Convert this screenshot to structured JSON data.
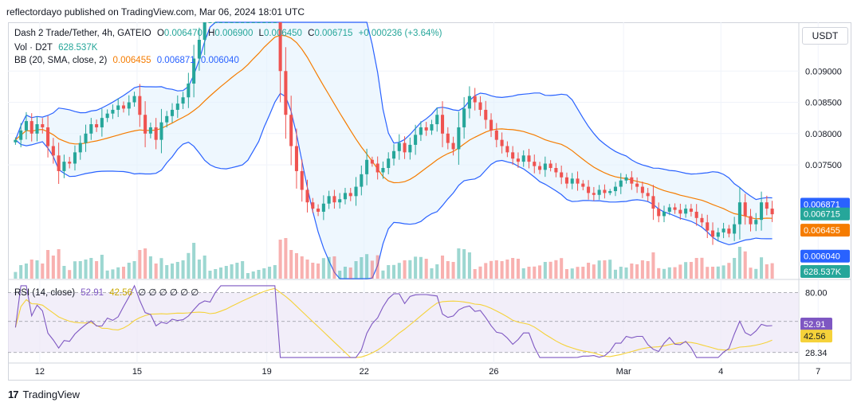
{
  "header": {
    "text": "reflectordayo published on TradingView.com, Mar 06, 2024 18:01 UTC"
  },
  "currency": "USDT",
  "legend": {
    "symbol": "Dash 2 Trade/Tether, 4h, GATEIO",
    "o_label": "O",
    "o_value": "0.006470",
    "h_label": "H",
    "h_value": "0.006900",
    "l_label": "L",
    "l_value": "0.006450",
    "c_label": "C",
    "c_value": "0.006715",
    "change": "+0.000236 (+3.64%)",
    "vol_label": "Vol · D2T",
    "vol_value": "628.537K",
    "bb_label": "BB (20, SMA, close, 2)",
    "bb_basis": "0.006455",
    "bb_upper": "0.006871",
    "bb_lower": "0.006040",
    "rsi_label": "RSI (14, close)",
    "rsi_value": "52.91",
    "rsi_ma": "42.56",
    "rsi_extra": "∅  ∅  ∅  ∅  ∅  ∅"
  },
  "colors": {
    "up": "#26a69a",
    "down": "#ef5350",
    "bb_band": "#2962ff",
    "bb_basis": "#f57c00",
    "bb_fill": "#e3f2fd",
    "rsi_line": "#7e57c2",
    "rsi_ma": "#f5d23a",
    "rsi_fill": "#ede7f6"
  },
  "footer": {
    "brand": "TradingView",
    "logo": "17"
  },
  "chart_data": {
    "type": "candlestick",
    "price_axis": [
      "0.009000",
      "0.008500",
      "0.008000",
      "0.007500"
    ],
    "price_ylim": [
      0.00568,
      0.00978
    ],
    "rsi_axis": [
      "80.00",
      "55.15",
      "28.34"
    ],
    "rsi_ylim": [
      22,
      88
    ],
    "x_ticks": [
      {
        "label": "12",
        "idx": 4.5
      },
      {
        "label": "15",
        "idx": 22.5
      },
      {
        "label": "19",
        "idx": 46.5
      },
      {
        "label": "22",
        "idx": 64.5
      },
      {
        "label": "26",
        "idx": 88.5
      },
      {
        "label": "Mar",
        "idx": 112.5
      },
      {
        "label": "4",
        "idx": 130.5
      },
      {
        "label": "7",
        "idx": 148.5
      }
    ],
    "close": [
      0.0079,
      0.00805,
      0.0082,
      0.008,
      0.00815,
      0.0081,
      0.0078,
      0.00765,
      0.0074,
      0.00755,
      0.00752,
      0.0077,
      0.00785,
      0.008,
      0.00815,
      0.0081,
      0.00825,
      0.00832,
      0.00838,
      0.00845,
      0.0084,
      0.0085,
      0.0086,
      0.0083,
      0.008,
      0.0081,
      0.0079,
      0.00818,
      0.00828,
      0.00838,
      0.00848,
      0.00858,
      0.0088,
      0.0092,
      0.0095,
      0.00985,
      0.00985,
      0.00985,
      0.00985,
      0.00985,
      0.00985,
      0.00985,
      0.00985,
      0.00985,
      0.00985,
      0.00985,
      0.00985,
      0.00985,
      0.00985,
      0.009,
      0.0083,
      0.0078,
      0.0074,
      0.0071,
      0.0069,
      0.0068,
      0.00675,
      0.00688,
      0.007,
      0.0069,
      0.00695,
      0.00705,
      0.007,
      0.00715,
      0.00735,
      0.00758,
      0.00752,
      0.00738,
      0.00745,
      0.0076,
      0.00772,
      0.00785,
      0.0077,
      0.00782,
      0.00798,
      0.0081,
      0.00805,
      0.00815,
      0.0083,
      0.008,
      0.00785,
      0.00775,
      0.0081,
      0.0084,
      0.0086,
      0.0085,
      0.00838,
      0.00822,
      0.00805,
      0.0079,
      0.0078,
      0.0077,
      0.0076,
      0.00755,
      0.00765,
      0.00755,
      0.00748,
      0.00742,
      0.00752,
      0.00745,
      0.00738,
      0.0073,
      0.0072,
      0.00728,
      0.0072,
      0.00715,
      0.00705,
      0.00702,
      0.0071,
      0.00705,
      0.00708,
      0.00715,
      0.00725,
      0.0073,
      0.0072,
      0.00715,
      0.00705,
      0.007,
      0.0068,
      0.00668,
      0.00675,
      0.00682,
      0.00678,
      0.00672,
      0.0068,
      0.00675,
      0.00665,
      0.00658,
      0.00645,
      0.00635,
      0.00642,
      0.00648,
      0.0064,
      0.00655,
      0.0069,
      0.00668,
      0.00655,
      0.00662,
      0.0069,
      0.0068,
      0.00671
    ]
  }
}
